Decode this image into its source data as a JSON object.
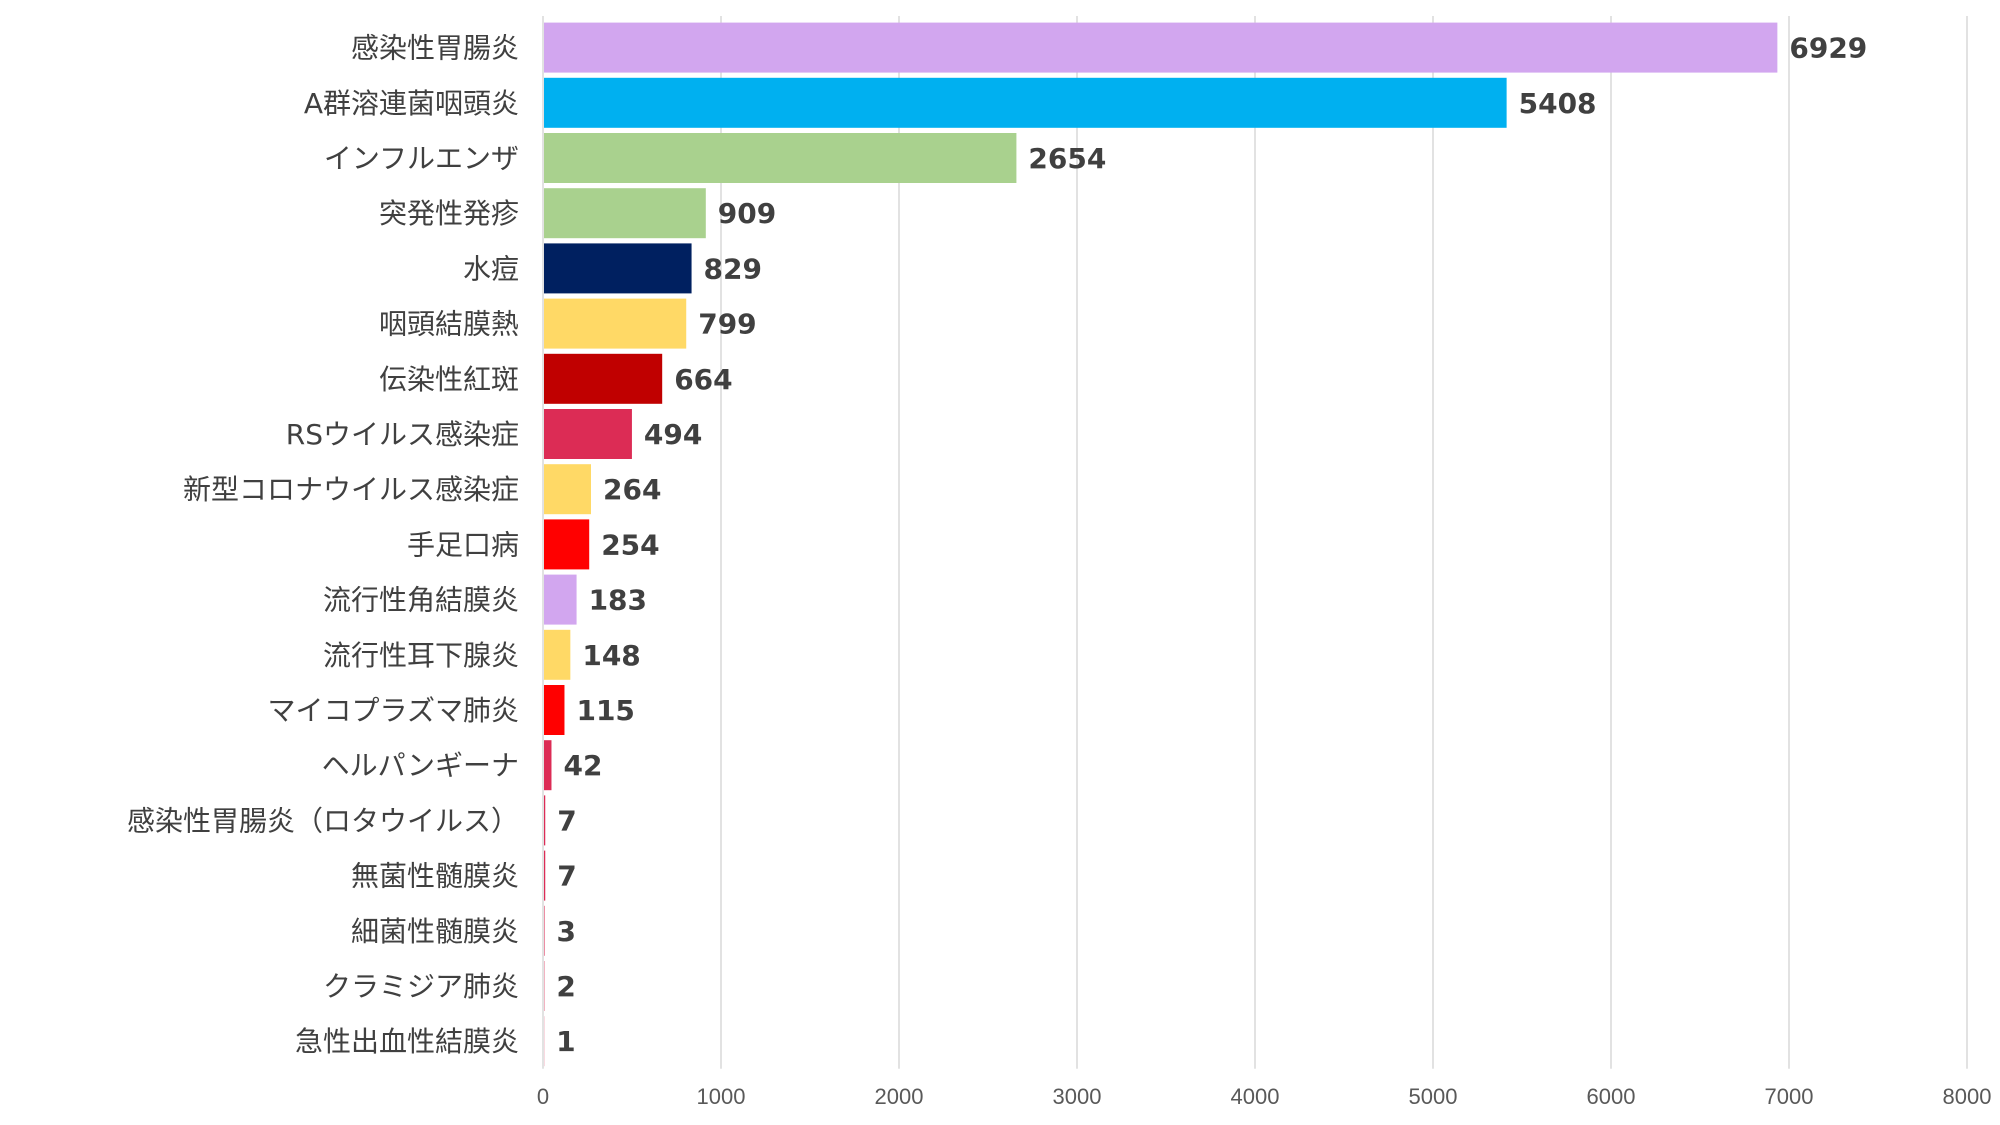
{
  "chart_data": {
    "type": "bar",
    "orientation": "horizontal",
    "title": "",
    "xlabel": "",
    "ylabel": "",
    "xlim": [
      0,
      8000
    ],
    "x_ticks": [
      "0",
      "1000",
      "2000",
      "3000",
      "4000",
      "5000",
      "6000",
      "7000",
      "8000"
    ],
    "grid": true,
    "legend": "none",
    "bars": [
      {
        "category": "感染性胃腸炎",
        "value": 6929,
        "color": "#d2a6ef"
      },
      {
        "category": "A群溶連菌咽頭炎",
        "value": 5408,
        "color": "#00b0f0"
      },
      {
        "category": "インフルエンザ",
        "value": 2654,
        "color": "#a9d18e"
      },
      {
        "category": "突発性発疹",
        "value": 909,
        "color": "#a9d18e"
      },
      {
        "category": "水痘",
        "value": 829,
        "color": "#002060"
      },
      {
        "category": "咽頭結膜熱",
        "value": 799,
        "color": "#ffd966"
      },
      {
        "category": "伝染性紅斑",
        "value": 664,
        "color": "#c00000"
      },
      {
        "category": "RSウイルス感染症",
        "value": 494,
        "color": "#dc2c55"
      },
      {
        "category": "新型コロナウイルス感染症",
        "value": 264,
        "color": "#ffd966"
      },
      {
        "category": "手足口病",
        "value": 254,
        "color": "#ff0000"
      },
      {
        "category": "流行性角結膜炎",
        "value": 183,
        "color": "#d2a6ef"
      },
      {
        "category": "流行性耳下腺炎",
        "value": 148,
        "color": "#ffd966"
      },
      {
        "category": "マイコプラズマ肺炎",
        "value": 115,
        "color": "#ff0000"
      },
      {
        "category": "ヘルパンギーナ",
        "value": 42,
        "color": "#dc2c55"
      },
      {
        "category": "感染性胃腸炎（ロタウイルス）",
        "value": 7,
        "color": "#dc2c55"
      },
      {
        "category": "無菌性髄膜炎",
        "value": 7,
        "color": "#dc2c55"
      },
      {
        "category": "細菌性髄膜炎",
        "value": 3,
        "color": "#dc2c55"
      },
      {
        "category": "クラミジア肺炎",
        "value": 2,
        "color": "#dc2c55"
      },
      {
        "category": "急性出血性結膜炎",
        "value": 1,
        "color": "#dc2c55"
      }
    ]
  }
}
